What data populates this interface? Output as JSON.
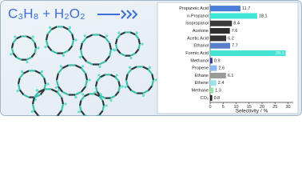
{
  "reaction": "C₃H₈ + H₂O₂",
  "chart_data": {
    "type": "hbar",
    "categories": [
      "Propanoic Acid",
      "n-Propanol",
      "Isopropanol",
      "Acetone",
      "Acetic Acid",
      "Ethanol",
      "Formic Acid",
      "Methanol",
      "Propene",
      "Ethane",
      "Ethene",
      "Methane",
      "CO₂"
    ],
    "values": [
      11.7,
      18.1,
      8.4,
      7.6,
      6.2,
      7.7,
      29.1,
      0.9,
      2.6,
      6.1,
      2.4,
      1.3,
      0.8
    ],
    "colors": [
      "#4a7fd8",
      "#3fe6d6",
      "#3a3a3a",
      "#2e2e2e",
      "#333333",
      "#5b7fc8",
      "#44e3d3",
      "#2a3f96",
      "#8eb6f0",
      "#9a9a9a",
      "#9ce4ea",
      "#8ee6a0",
      "#1f1f1f"
    ],
    "xlabel": "Selectivity / %",
    "xlim": [
      0,
      32
    ],
    "xticks": [
      0,
      5,
      10,
      15,
      20,
      25,
      30
    ]
  }
}
